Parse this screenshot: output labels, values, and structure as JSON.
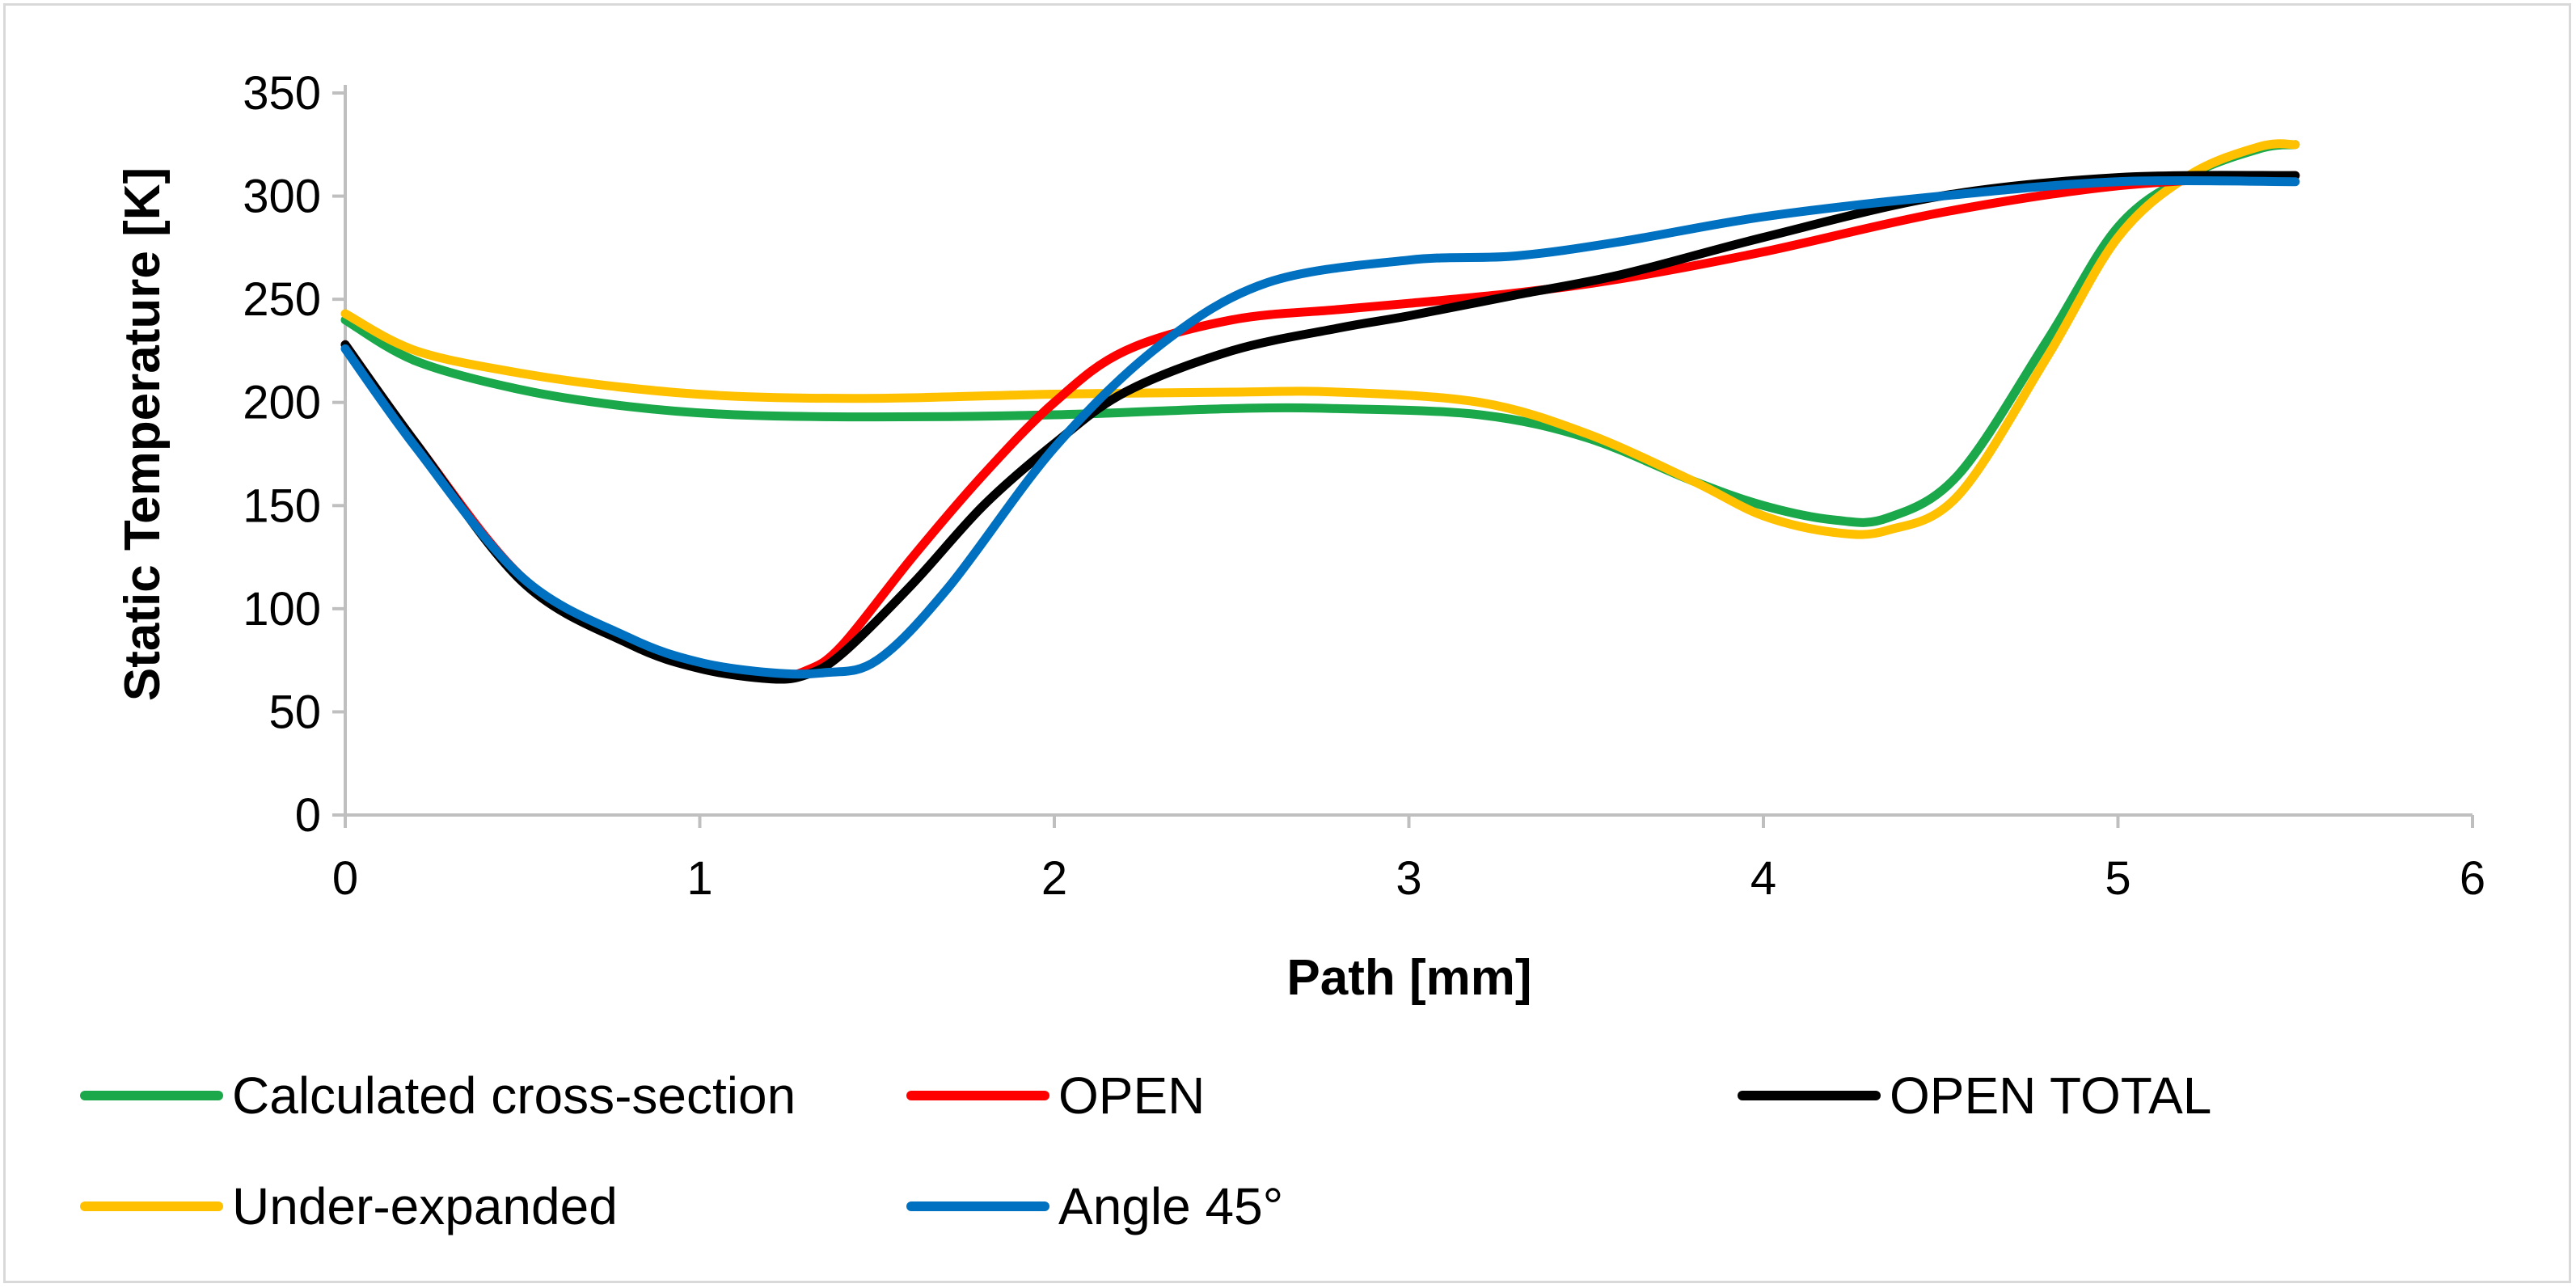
{
  "chart_data": {
    "type": "line",
    "title": "",
    "xlabel": "Path [mm]",
    "ylabel": "Static Temperature [K]",
    "xlim": [
      0,
      6
    ],
    "ylim": [
      0,
      350
    ],
    "xticks": [
      0,
      1,
      2,
      3,
      4,
      5,
      6
    ],
    "yticks": [
      0,
      50,
      100,
      150,
      200,
      250,
      300,
      350
    ],
    "grid": false,
    "legend_position": "bottom",
    "series": [
      {
        "name": "Calculated cross-section",
        "color": "#1aa84a",
        "x": [
          0,
          0.2,
          0.5,
          0.8,
          1.1,
          1.5,
          2.0,
          2.5,
          2.8,
          3.2,
          3.5,
          3.8,
          4.0,
          4.2,
          4.35,
          4.55,
          4.8,
          5.0,
          5.2,
          5.4,
          5.5
        ],
        "y": [
          240,
          220,
          206,
          198,
          194,
          193,
          194,
          197,
          197,
          194,
          183,
          162,
          150,
          143,
          144,
          165,
          230,
          285,
          310,
          323,
          325
        ]
      },
      {
        "name": "OPEN",
        "color": "#ff0000",
        "x": [
          0,
          0.2,
          0.5,
          0.8,
          1.0,
          1.2,
          1.3,
          1.4,
          1.6,
          1.8,
          2.0,
          2.2,
          2.5,
          2.8,
          3.0,
          3.3,
          3.6,
          4.0,
          4.5,
          5.0,
          5.5
        ],
        "y": [
          228,
          180,
          115,
          85,
          72,
          67,
          70,
          82,
          125,
          165,
          200,
          225,
          240,
          245,
          248,
          253,
          260,
          273,
          292,
          305,
          310
        ]
      },
      {
        "name": "OPEN TOTAL",
        "color": "#000000",
        "x": [
          0,
          0.2,
          0.5,
          0.8,
          1.0,
          1.2,
          1.3,
          1.4,
          1.6,
          1.8,
          2.0,
          2.2,
          2.5,
          2.8,
          3.0,
          3.3,
          3.6,
          4.0,
          4.5,
          5.0,
          5.5
        ],
        "y": [
          228,
          180,
          113,
          83,
          71,
          66,
          68,
          78,
          112,
          150,
          180,
          205,
          225,
          236,
          242,
          252,
          262,
          280,
          300,
          309,
          310
        ]
      },
      {
        "name": "Under-expanded",
        "color": "#ffc000",
        "x": [
          0,
          0.2,
          0.5,
          0.8,
          1.1,
          1.5,
          2.0,
          2.5,
          2.8,
          3.2,
          3.5,
          3.8,
          4.0,
          4.2,
          4.35,
          4.55,
          4.8,
          5.0,
          5.2,
          5.4,
          5.5
        ],
        "y": [
          243,
          225,
          214,
          207,
          203,
          202,
          204,
          205,
          205,
          200,
          185,
          162,
          145,
          137,
          138,
          155,
          222,
          280,
          310,
          324,
          325
        ]
      },
      {
        "name": "Angle 45°",
        "color": "#0070c0",
        "x": [
          0,
          0.2,
          0.5,
          0.8,
          1.0,
          1.2,
          1.35,
          1.5,
          1.7,
          2.0,
          2.3,
          2.6,
          3.0,
          3.3,
          3.6,
          4.0,
          4.5,
          5.0,
          5.5
        ],
        "y": [
          226,
          178,
          115,
          86,
          74,
          69,
          69,
          75,
          110,
          178,
          228,
          258,
          269,
          271,
          278,
          290,
          300,
          307,
          307
        ]
      }
    ]
  }
}
